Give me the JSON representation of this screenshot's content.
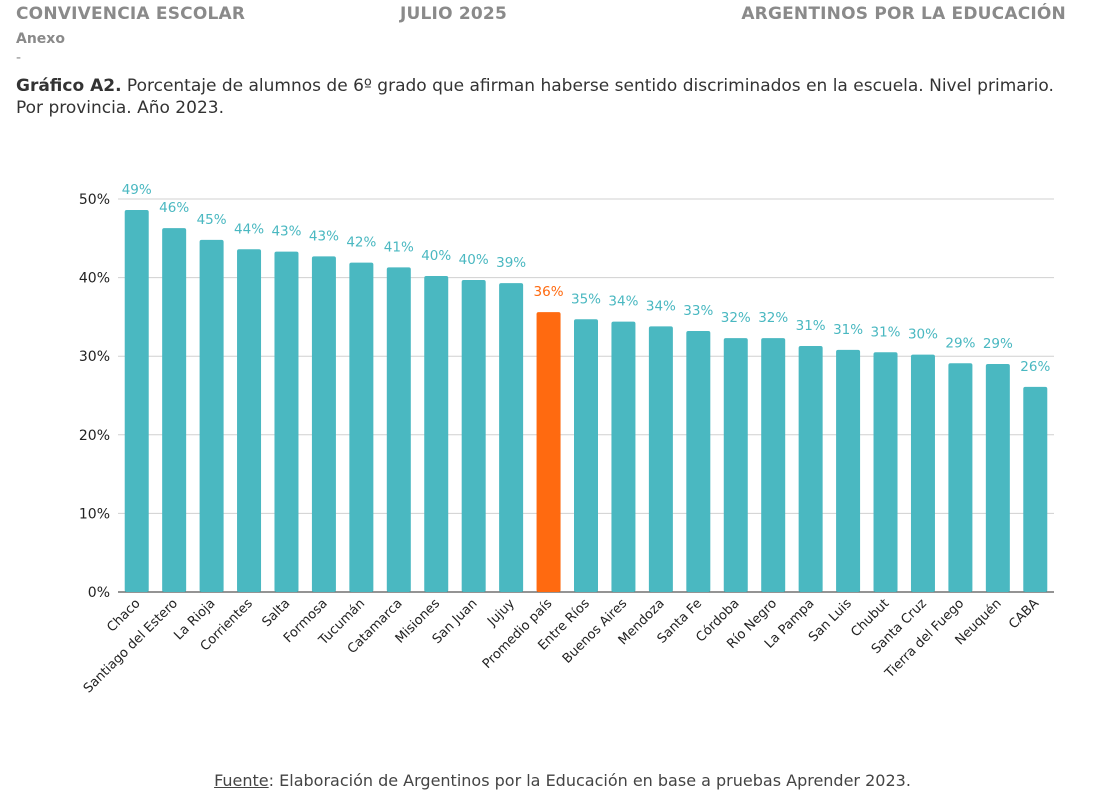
{
  "header": {
    "left": "CONVIVENCIA ESCOLAR",
    "center": "JULIO 2025",
    "right": "ARGENTINOS POR LA EDUCACIÓN"
  },
  "section": "Anexo",
  "separator": "-",
  "title": {
    "label": "Gráfico A2.",
    "text": " Porcentaje de alumnos de 6º grado que afirman haberse sentido discriminados en la escuela. Nivel primario. Por provincia. Año 2023."
  },
  "source": {
    "label": "Fuente",
    "text": ": Elaboración de Argentinos por la Educación en base a pruebas Aprender 2023."
  },
  "chart_data": {
    "type": "bar",
    "title": "",
    "xlabel": "",
    "ylabel": "",
    "ylim": [
      0,
      50
    ],
    "yticks": [
      "0%",
      "10%",
      "20%",
      "30%",
      "40%",
      "50%"
    ],
    "grid": true,
    "colors": {
      "bar": "#4ab8c1",
      "highlight": "#ff6a10",
      "label": "#4ab8c1",
      "highlight_label": "#ff6a10"
    },
    "highlight": "Promedio país",
    "categories": [
      "Chaco",
      "Santiago del Estero",
      "La Rioja",
      "Corrientes",
      "Salta",
      "Formosa",
      "Tucumán",
      "Catamarca",
      "Misiones",
      "San Juan",
      "Jujuy",
      "Promedio país",
      "Entre Ríos",
      "Buenos Aires",
      "Mendoza",
      "Santa Fe",
      "Córdoba",
      "Río Negro",
      "La Pampa",
      "San Luis",
      "Chubut",
      "Santa Cruz",
      "Tierra del Fuego",
      "Neuquén",
      "CABA"
    ],
    "values": [
      48.6,
      46.3,
      44.8,
      43.6,
      43.3,
      42.7,
      41.9,
      41.3,
      40.2,
      39.7,
      39.3,
      35.6,
      34.7,
      34.4,
      33.8,
      33.2,
      32.3,
      32.3,
      31.3,
      30.8,
      30.5,
      30.2,
      29.1,
      29.0,
      26.1
    ],
    "data_labels": [
      "49%",
      "46%",
      "45%",
      "44%",
      "43%",
      "43%",
      "42%",
      "41%",
      "40%",
      "40%",
      "39%",
      "36%",
      "35%",
      "34%",
      "34%",
      "33%",
      "32%",
      "32%",
      "31%",
      "31%",
      "31%",
      "30%",
      "29%",
      "29%",
      "26%"
    ]
  }
}
